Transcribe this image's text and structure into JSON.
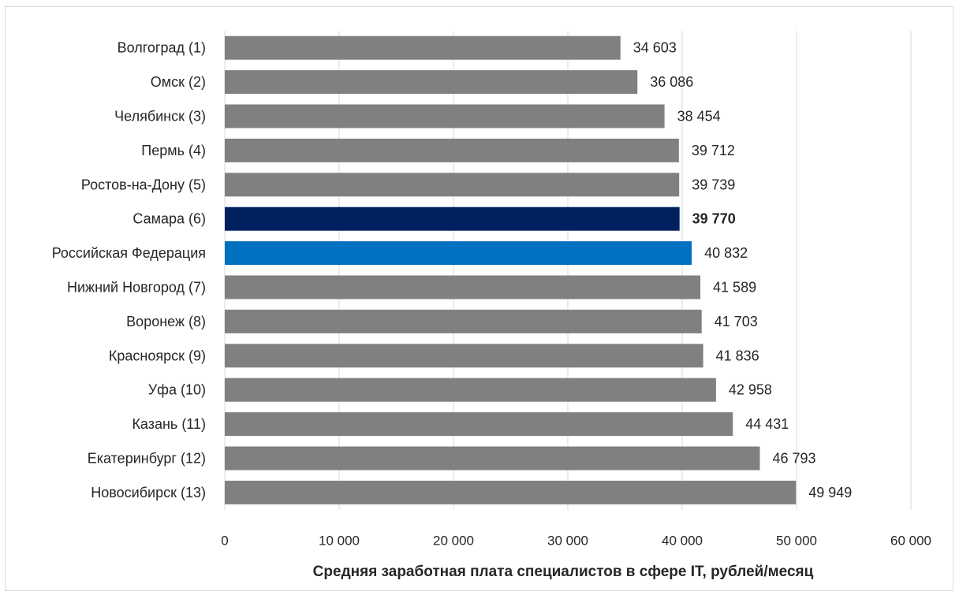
{
  "chart_data": {
    "type": "bar",
    "orientation": "horizontal",
    "title": "",
    "xlabel": "Средняя заработная плата специалистов в сфере IT, рублей/месяц",
    "ylabel": "",
    "xlim": [
      0,
      60000
    ],
    "grid": true,
    "legend": "none",
    "categories": [
      "Волгоград (1)",
      "Омск (2)",
      "Челябинск (3)",
      "Пермь (4)",
      "Ростов-на-Дону (5)",
      "Самара (6)",
      "Российская Федерация",
      "Нижний Новгород (7)",
      "Воронеж (8)",
      "Красноярск (9)",
      "Уфа (10)",
      "Казань (11)",
      "Екатеринбург (12)",
      "Новосибирск (13)"
    ],
    "values": [
      34603,
      36086,
      38454,
      39712,
      39739,
      39770,
      40832,
      41589,
      41703,
      41836,
      42958,
      44431,
      46793,
      49949
    ],
    "data_labels": [
      "34 603",
      "36 086",
      "38 454",
      "39 712",
      "39 739",
      "39 770",
      "40 832",
      "41 589",
      "41 703",
      "41 836",
      "42 958",
      "44 431",
      "46 793",
      "49 949"
    ],
    "x_ticks": [
      0,
      10000,
      20000,
      30000,
      40000,
      50000,
      60000
    ],
    "x_tick_labels": [
      "0",
      "10 000",
      "20 000",
      "30 000",
      "40 000",
      "50 000",
      "60 000"
    ],
    "colors": {
      "default": "#808080",
      "highlight": "#002060",
      "reference": "#0070c0",
      "text": "#262626",
      "grid": "#d9d9d9"
    },
    "highlight_index": 5,
    "reference_index": 6
  }
}
